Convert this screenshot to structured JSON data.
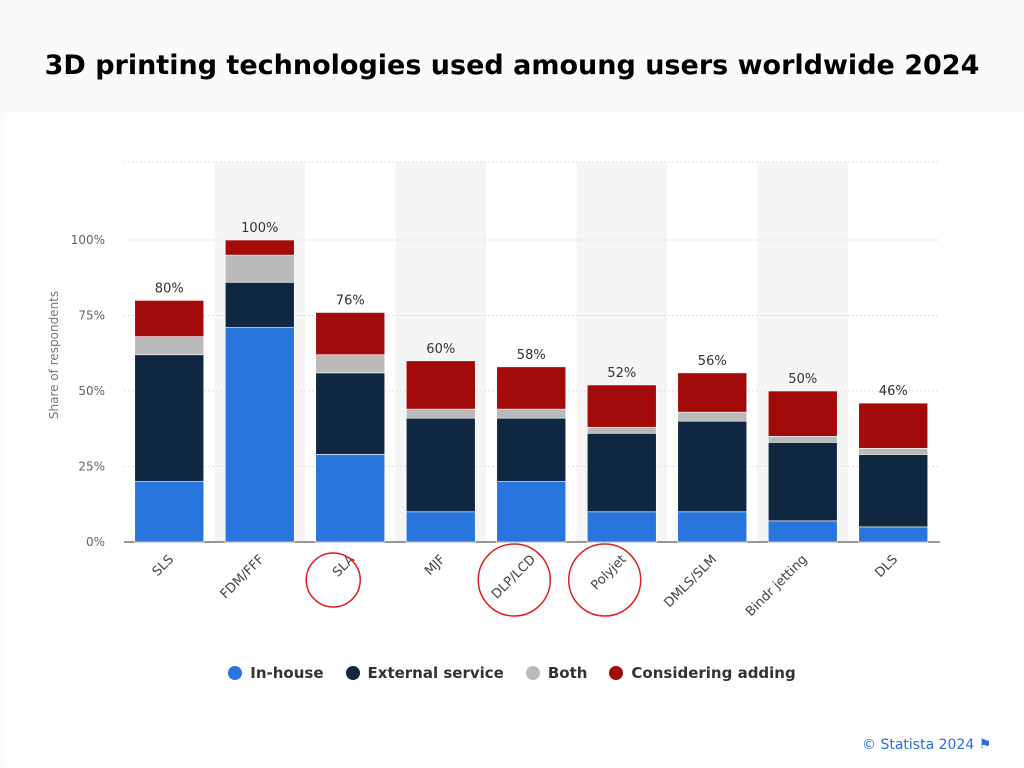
{
  "title": "3D printing technologies used amoung users worldwide 2024",
  "credit": "© Statista 2024",
  "icons": {
    "flag": "flag-icon"
  },
  "chart_data": {
    "type": "bar",
    "stacked": true,
    "ylabel": "Share of respondents",
    "ylim": [
      0,
      100
    ],
    "yticks": [
      "0%",
      "25%",
      "50%",
      "75%",
      "100%"
    ],
    "categories": [
      "SLS",
      "FDM/FFF",
      "SLA",
      "MJF",
      "DLP/LCD",
      "Polyjet",
      "DMLS/SLM",
      "Bindr jetting",
      "DLS"
    ],
    "highlighted": [
      "SLA",
      "DLP/LCD",
      "Polyjet"
    ],
    "totals": [
      "80%",
      "100%",
      "76%",
      "60%",
      "58%",
      "52%",
      "56%",
      "50%",
      "46%"
    ],
    "series": [
      {
        "name": "In-house",
        "color": "#2876dd",
        "values": [
          20,
          71,
          29,
          10,
          20,
          10,
          10,
          7,
          5
        ]
      },
      {
        "name": "External service",
        "color": "#0f2741",
        "values": [
          42,
          15,
          27,
          31,
          21,
          26,
          30,
          26,
          24
        ]
      },
      {
        "name": "Both",
        "color": "#bababa",
        "values": [
          6,
          9,
          6,
          3,
          3,
          2,
          3,
          2,
          2
        ]
      },
      {
        "name": "Considering adding",
        "color": "#a30b0b",
        "values": [
          12,
          5,
          14,
          16,
          14,
          14,
          13,
          15,
          15
        ]
      }
    ],
    "legend": "bottom",
    "grid": true
  }
}
